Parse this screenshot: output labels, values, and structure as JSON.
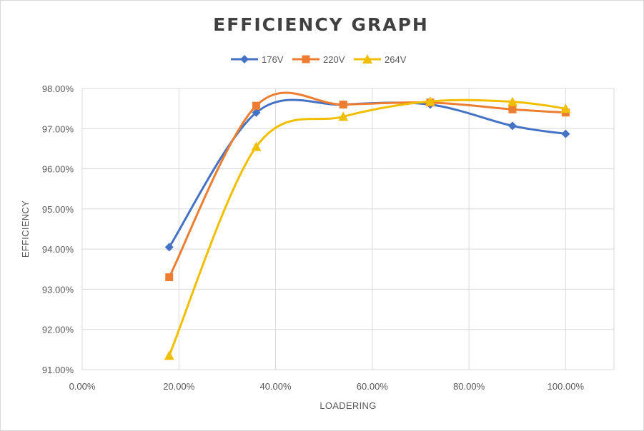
{
  "chart_data": {
    "type": "line",
    "title": "EFFICIENCY GRAPH",
    "xlabel": "LOADERING",
    "ylabel": "EFFICIENCY",
    "xlim": [
      0,
      1.1
    ],
    "ylim": [
      0.91,
      0.98
    ],
    "x_ticks": [
      0,
      0.2,
      0.4,
      0.6,
      0.8,
      1.0
    ],
    "x_tick_labels": [
      "0.00%",
      "20.00%",
      "40.00%",
      "60.00%",
      "80.00%",
      "100.00%"
    ],
    "y_ticks": [
      0.91,
      0.92,
      0.93,
      0.94,
      0.95,
      0.96,
      0.97,
      0.98
    ],
    "y_tick_labels": [
      "91.00%",
      "92.00%",
      "93.00%",
      "94.00%",
      "95.00%",
      "96.00%",
      "97.00%",
      "98.00%"
    ],
    "grid": true,
    "smooth": true,
    "legend_position": "top",
    "series": [
      {
        "name": "176V",
        "color": "#4472C4",
        "marker": "diamond",
        "x": [
          0.18,
          0.36,
          0.54,
          0.72,
          0.89,
          1.0
        ],
        "y": [
          0.9405,
          0.974,
          0.976,
          0.976,
          0.9707,
          0.9687
        ]
      },
      {
        "name": "220V",
        "color": "#ED7D31",
        "marker": "square",
        "x": [
          0.18,
          0.36,
          0.54,
          0.72,
          0.89,
          1.0
        ],
        "y": [
          0.933,
          0.9757,
          0.976,
          0.9765,
          0.9748,
          0.974
        ]
      },
      {
        "name": "264V",
        "color": "#F2BE00",
        "marker": "triangle",
        "x": [
          0.18,
          0.36,
          0.54,
          0.72,
          0.89,
          1.0
        ],
        "y": [
          0.9135,
          0.9655,
          0.973,
          0.9768,
          0.9767,
          0.975
        ]
      }
    ]
  }
}
